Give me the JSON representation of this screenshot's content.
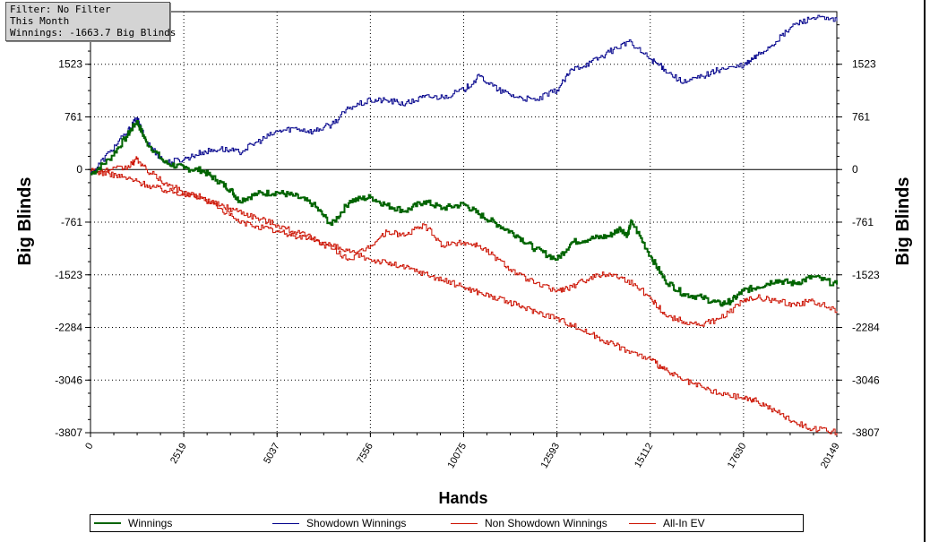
{
  "info": {
    "filter": "Filter: No Filter",
    "period": "This Month",
    "winnings": "Winnings: -1663.7 Big Blinds"
  },
  "chart_data": {
    "type": "line",
    "xlabel": "Hands",
    "ylabel": "Big Blinds",
    "ylabel_right": "Big Blinds",
    "xlim": [
      0,
      20149
    ],
    "ylim": [
      -3807,
      2284
    ],
    "x_ticks": [
      "0",
      "2519",
      "5037",
      "7556",
      "10075",
      "12593",
      "15112",
      "17630",
      "20149"
    ],
    "y_ticks": [
      "1523",
      "761",
      "0",
      "-761",
      "-1523",
      "-2284",
      "-3046",
      "-3807"
    ],
    "grid": true,
    "legend_position": "bottom",
    "series": [
      {
        "name": "Winnings",
        "color": "#006400",
        "x": [
          0,
          500,
          1000,
          1250,
          1500,
          2000,
          2519,
          3000,
          3400,
          3800,
          4000,
          4500,
          5037,
          5500,
          6000,
          6500,
          7000,
          7556,
          8000,
          8500,
          9000,
          9500,
          10075,
          10500,
          11000,
          11500,
          12000,
          12593,
          13000,
          13500,
          14000,
          14300,
          14500,
          14600,
          15112,
          15500,
          16000,
          16500,
          17000,
          17300,
          17630,
          18000,
          18500,
          19000,
          19500,
          20149
        ],
        "values": [
          -70,
          150,
          500,
          700,
          400,
          100,
          20,
          -10,
          -150,
          -300,
          -450,
          -350,
          -330,
          -380,
          -500,
          -800,
          -450,
          -400,
          -520,
          -600,
          -460,
          -560,
          -500,
          -650,
          -800,
          -950,
          -1150,
          -1300,
          -1050,
          -1000,
          -960,
          -850,
          -950,
          -750,
          -1250,
          -1600,
          -1800,
          -1850,
          -1950,
          -1900,
          -1750,
          -1700,
          -1600,
          -1650,
          -1550,
          -1663.7
        ]
      },
      {
        "name": "Showdown Winnings",
        "color": "#00008b",
        "x": [
          0,
          500,
          1000,
          1250,
          1500,
          2000,
          2519,
          3000,
          3500,
          4000,
          4500,
          5037,
          5500,
          6000,
          6500,
          7000,
          7556,
          8000,
          8500,
          9000,
          9500,
          10075,
          10500,
          11000,
          11500,
          12000,
          12593,
          13000,
          13500,
          14000,
          14500,
          15112,
          15500,
          16000,
          16500,
          17000,
          17630,
          18000,
          18500,
          19000,
          19500,
          20149
        ],
        "values": [
          -70,
          250,
          550,
          750,
          400,
          100,
          150,
          250,
          300,
          250,
          400,
          550,
          600,
          550,
          650,
          900,
          1000,
          1000,
          950,
          1050,
          1050,
          1150,
          1350,
          1150,
          1050,
          1000,
          1150,
          1450,
          1550,
          1700,
          1850,
          1600,
          1450,
          1250,
          1350,
          1450,
          1500,
          1650,
          1850,
          2100,
          2200,
          2150
        ]
      },
      {
        "name": "Non Showdown Winnings",
        "color": "#cc1100",
        "x": [
          0,
          500,
          1000,
          1500,
          2000,
          2519,
          3000,
          3500,
          4000,
          4500,
          5037,
          5500,
          6000,
          6500,
          7000,
          7556,
          8000,
          8500,
          9000,
          9500,
          10075,
          10500,
          11000,
          11500,
          12000,
          12593,
          13000,
          13500,
          14000,
          14500,
          15112,
          15500,
          16000,
          16500,
          17000,
          17630,
          18000,
          18500,
          19000,
          19500,
          20149
        ],
        "values": [
          -20,
          -60,
          -130,
          -220,
          -300,
          -350,
          -420,
          -520,
          -600,
          -700,
          -800,
          -900,
          -1000,
          -1100,
          -1200,
          -1300,
          -1350,
          -1420,
          -1500,
          -1600,
          -1700,
          -1780,
          -1870,
          -1960,
          -2050,
          -2150,
          -2250,
          -2380,
          -2500,
          -2620,
          -2750,
          -2900,
          -3050,
          -3150,
          -3250,
          -3300,
          -3350,
          -3500,
          -3650,
          -3750,
          -3807
        ]
      },
      {
        "name": "All-In EV",
        "color": "#cc1100",
        "x": [
          0,
          500,
          1000,
          1250,
          1500,
          2000,
          2519,
          3000,
          3500,
          4000,
          4500,
          5037,
          5500,
          6000,
          6500,
          7000,
          7556,
          8000,
          8500,
          9000,
          9500,
          10075,
          10500,
          11000,
          11500,
          12000,
          12593,
          13000,
          13500,
          14000,
          14500,
          15112,
          15500,
          16000,
          16500,
          17000,
          17630,
          18000,
          18500,
          19000,
          19500,
          20149
        ],
        "values": [
          -20,
          -10,
          30,
          150,
          0,
          -200,
          -330,
          -400,
          -560,
          -760,
          -820,
          -900,
          -960,
          -1000,
          -1150,
          -1300,
          -1100,
          -900,
          -950,
          -800,
          -1100,
          -1050,
          -1100,
          -1300,
          -1500,
          -1650,
          -1750,
          -1700,
          -1550,
          -1500,
          -1600,
          -1850,
          -2100,
          -2200,
          -2250,
          -2150,
          -1900,
          -1850,
          -1900,
          -1950,
          -1900,
          -2050
        ]
      }
    ]
  }
}
